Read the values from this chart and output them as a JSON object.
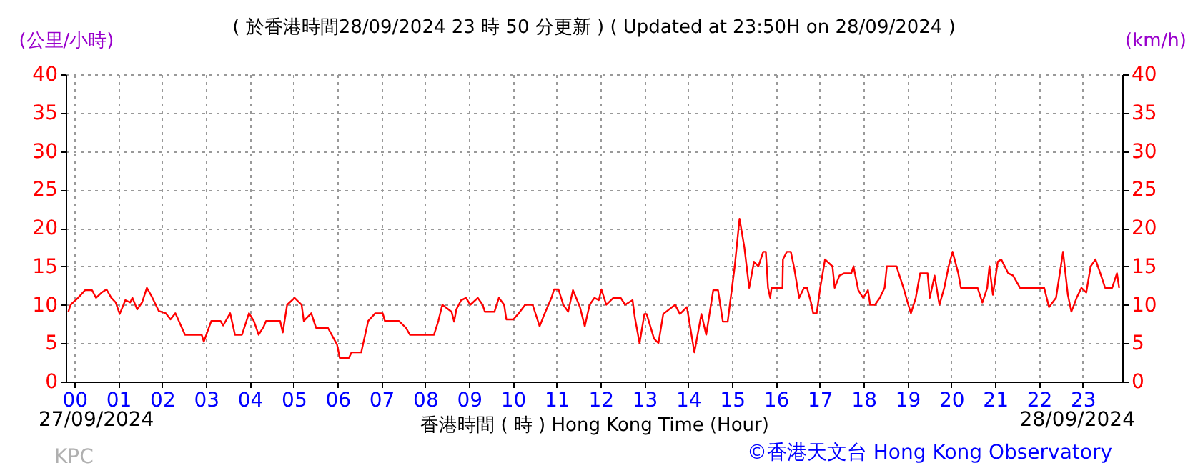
{
  "chart_data": {
    "type": "line",
    "title": "( 於香港時間28/09/2024 23 時 50 分更新 ) ( Updated at 23:50H on 28/09/2024 )",
    "xlabel": "香港時間 ( 時 ) Hong Kong Time (Hour)",
    "ylabel": "(公里/小時)",
    "y2label": "(km/h)",
    "annotations": [
      "27/09/2024",
      "28/09/2024",
      "KPC",
      "©香港天文台 Hong Kong Observatory"
    ],
    "x": [
      -0.14,
      -0.09,
      0.08,
      0.24,
      0.4,
      0.49,
      0.62,
      0.73,
      0.84,
      0.94,
      1.03,
      1.16,
      1.27,
      1.32,
      1.43,
      1.54,
      1.65,
      1.76,
      1.92,
      2.08,
      2.19,
      2.3,
      2.52,
      2.9,
      2.95,
      3.12,
      3.33,
      3.39,
      3.55,
      3.66,
      3.82,
      3.98,
      4.09,
      4.2,
      4.31,
      4.37,
      4.69,
      4.75,
      4.85,
      5.02,
      5.18,
      5.23,
      5.4,
      5.51,
      5.78,
      5.99,
      6.05,
      6.26,
      6.32,
      6.54,
      6.7,
      6.86,
      7.03,
      7.08,
      7.4,
      7.56,
      7.65,
      7.75,
      8.2,
      8.3,
      8.39,
      8.6,
      8.66,
      8.71,
      8.82,
      8.93,
      9.03,
      9.2,
      9.31,
      9.36,
      9.58,
      9.68,
      9.8,
      9.85,
      10.01,
      10.12,
      10.28,
      10.45,
      10.61,
      10.72,
      10.88,
      10.94,
      11.04,
      11.15,
      11.26,
      11.37,
      11.53,
      11.64,
      11.75,
      11.86,
      11.96,
      12.02,
      12.13,
      12.29,
      12.46,
      12.56,
      12.73,
      12.78,
      12.89,
      13,
      13.05,
      13.22,
      13.32,
      13.43,
      13.7,
      13.81,
      13.97,
      14.14,
      14.3,
      14.41,
      14.57,
      14.68,
      14.79,
      14.9,
      15.06,
      15.17,
      15.28,
      15.39,
      15.5,
      15.6,
      15.71,
      15.77,
      15.82,
      15.87,
      15.9,
      16.15,
      16.16,
      16.25,
      16.34,
      16.42,
      16.53,
      16.64,
      16.71,
      16.8,
      16.85,
      16.93,
      17.01,
      17.12,
      17.29,
      17.34,
      17.45,
      17.56,
      17.72,
      17.77,
      17.88,
      17.99,
      18.1,
      18.15,
      18.26,
      18.37,
      18.48,
      18.53,
      18.75,
      18.91,
      19.02,
      19.08,
      19.19,
      19.29,
      19.46,
      19.51,
      19.62,
      19.73,
      19.84,
      19.94,
      20.03,
      20.16,
      20.22,
      20.6,
      20.71,
      20.82,
      20.87,
      20.95,
      21.06,
      21.14,
      21.3,
      21.41,
      21.57,
      22.12,
      22.23,
      22.39,
      22.5,
      22.55,
      22.66,
      22.74,
      22.86,
      22.97,
      23.08,
      23.18,
      23.29,
      23.4,
      23.51,
      23.67,
      23.78,
      23.83
    ],
    "series": [
      {
        "color": "#ff0000",
        "values": [
          9.1,
          10,
          10.9,
          11.9,
          11.9,
          10.9,
          11.6,
          12,
          10.9,
          10.3,
          8.8,
          10.6,
          10.3,
          10.9,
          9.4,
          10.3,
          12.2,
          11.1,
          9.2,
          8.9,
          8.1,
          8.9,
          6.1,
          6.1,
          5.2,
          7.9,
          7.9,
          7.3,
          8.9,
          6.1,
          6.1,
          8.9,
          7.9,
          6.1,
          7.1,
          7.9,
          7.9,
          6.4,
          10,
          10.9,
          10,
          7.9,
          8.9,
          7,
          7,
          4.8,
          3.1,
          3.1,
          3.8,
          3.8,
          7.9,
          8.9,
          8.9,
          7.9,
          7.9,
          7,
          6.1,
          6.1,
          6.1,
          7.9,
          10,
          9.1,
          7.8,
          9.4,
          10.6,
          10.9,
          10,
          10.9,
          10,
          9.1,
          9.1,
          10.9,
          10,
          8.1,
          8.1,
          8.8,
          10,
          10,
          7.2,
          8.8,
          10.9,
          12,
          12,
          10,
          9.1,
          11.9,
          9.7,
          7.2,
          10,
          10.9,
          10.6,
          12,
          10,
          10.9,
          10.9,
          10,
          10.6,
          8.4,
          5,
          8.8,
          8.8,
          5.6,
          5,
          8.8,
          10,
          8.8,
          9.7,
          3.8,
          8.8,
          6.1,
          11.9,
          11.9,
          7.8,
          7.8,
          15,
          21.2,
          17.5,
          12.2,
          15.6,
          15,
          16.9,
          16.9,
          12.2,
          10.9,
          12.2,
          12.2,
          15.9,
          16.9,
          16.9,
          14.7,
          10.9,
          12.2,
          12.2,
          10.3,
          8.9,
          8.9,
          12.2,
          15.9,
          15,
          12.2,
          13.8,
          14.1,
          14.1,
          15,
          11.9,
          10.9,
          11.9,
          10,
          10,
          10.9,
          12.2,
          15,
          15,
          12.2,
          10,
          8.9,
          10.9,
          14.1,
          14.1,
          10.9,
          13.8,
          10,
          12.2,
          15,
          16.9,
          14.1,
          12.2,
          12.2,
          10.3,
          12.2,
          15,
          11.3,
          15.6,
          15.9,
          14.1,
          13.8,
          12.2,
          12.2,
          9.7,
          10.9,
          15,
          16.9,
          11.3,
          9.1,
          10.9,
          12.2,
          11.6,
          15,
          15.9,
          14.1,
          12.2,
          12.2,
          14.1,
          12.2
        ]
      }
    ],
    "xlim": [
      -0.2,
      23.9
    ],
    "xticks": [
      {
        "value": 0,
        "label": "00"
      },
      {
        "value": 1,
        "label": "01"
      },
      {
        "value": 2,
        "label": "02"
      },
      {
        "value": 3,
        "label": "03"
      },
      {
        "value": 4,
        "label": "04"
      },
      {
        "value": 5,
        "label": "05"
      },
      {
        "value": 6,
        "label": "06"
      },
      {
        "value": 7,
        "label": "07"
      },
      {
        "value": 8,
        "label": "08"
      },
      {
        "value": 9,
        "label": "09"
      },
      10,
      11,
      12,
      13,
      14,
      15,
      16,
      17,
      18,
      19,
      20,
      21,
      22,
      23
    ],
    "ylim": [
      0,
      40
    ],
    "yticks": [
      0,
      5,
      10,
      15,
      20,
      25,
      30,
      35,
      40
    ],
    "y2lim": [
      0,
      40
    ],
    "y2ticks": [
      0,
      5,
      10,
      15,
      20,
      25,
      30,
      35,
      40
    ],
    "grid": true,
    "line_style": "solid",
    "marker": "none"
  }
}
